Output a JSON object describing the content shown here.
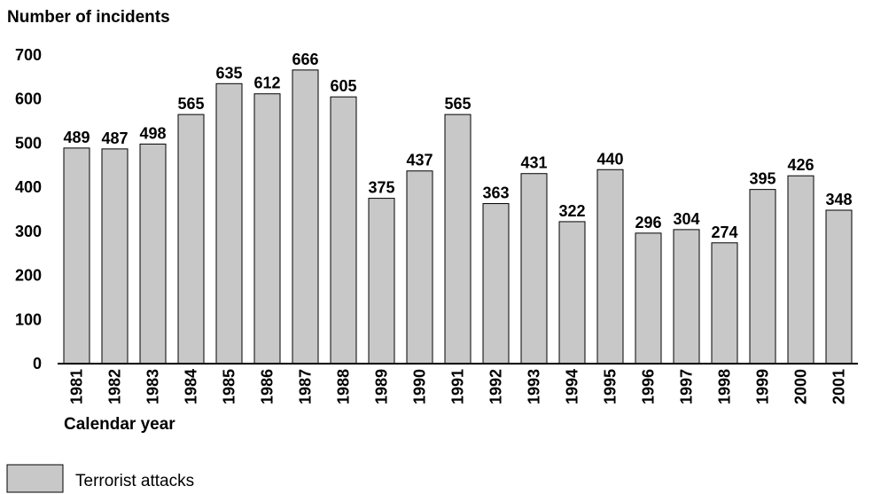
{
  "chart_data": {
    "type": "bar",
    "ylabel": "Number of incidents",
    "xlabel": "Calendar year",
    "ylim": [
      0,
      700
    ],
    "yticks": [
      "0",
      "100",
      "200",
      "300",
      "400",
      "500",
      "600",
      "700"
    ],
    "categories": [
      "1981",
      "1982",
      "1983",
      "1984",
      "1985",
      "1986",
      "1987",
      "1988",
      "1989",
      "1990",
      "1991",
      "1992",
      "1993",
      "1994",
      "1995",
      "1996",
      "1997",
      "1998",
      "1999",
      "2000",
      "2001"
    ],
    "series": [
      {
        "name": "Terrorist attacks",
        "values": [
          489,
          487,
          498,
          565,
          635,
          612,
          666,
          605,
          375,
          437,
          565,
          363,
          431,
          322,
          440,
          296,
          304,
          274,
          395,
          426,
          348
        ]
      }
    ],
    "bar_color": "#c8c8c8",
    "bar_stroke": "#000000",
    "grid": false,
    "legend_position": "bottom-left"
  }
}
